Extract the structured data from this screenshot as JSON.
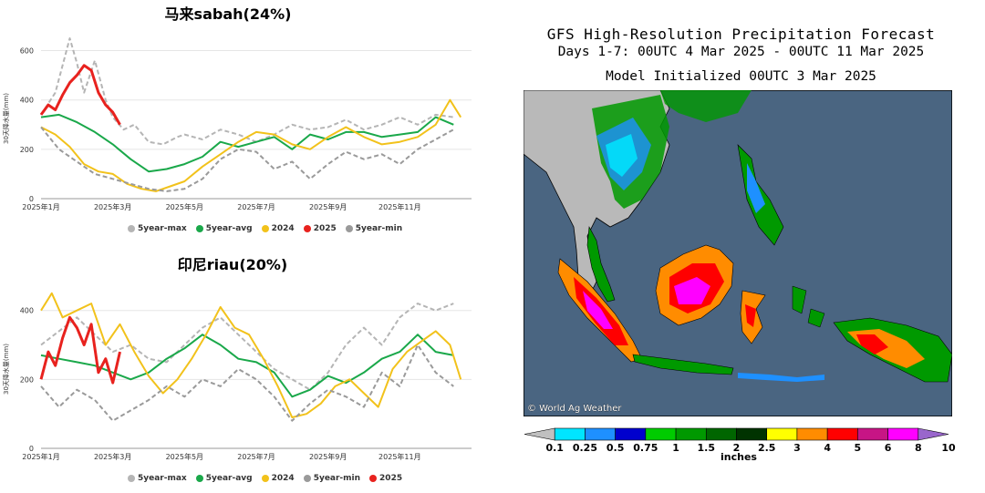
{
  "charts": [
    {
      "title": "马来sabah(24%)",
      "ylabel": "30天降水量(mm)",
      "yticks": [
        "0",
        "200",
        "400",
        "600"
      ],
      "xticks": [
        "2025年1月",
        "2025年3月",
        "2025年5月",
        "2025年7月",
        "2025年9月",
        "2025年11月"
      ],
      "legend": [
        "5year-max",
        "5year-avg",
        "2024",
        "2025",
        "5year-min"
      ]
    },
    {
      "title": "印尼riau(20%)",
      "ylabel": "30天降水量(mm)",
      "yticks": [
        "0",
        "200",
        "400"
      ],
      "xticks": [
        "2025年1月",
        "2025年3月",
        "2025年5月",
        "2025年7月",
        "2025年9月",
        "2025年11月"
      ],
      "legend": [
        "5year-max",
        "5year-avg",
        "2024",
        "5year-min",
        "2025"
      ]
    }
  ],
  "colors": {
    "max": "#b5b5b5",
    "min": "#9a9a9a",
    "avg": "#1aa84a",
    "y2024": "#f2c21b",
    "y2025": "#e8221e",
    "ocean": "#4a6581",
    "land": "#b9b9b9"
  },
  "chart_data": [
    {
      "type": "line",
      "title": "马来sabah(24%)",
      "ylabel": "30天降水量(mm)",
      "ylim": [
        0,
        650
      ],
      "x_unit": "months since 2025年1月",
      "series": [
        {
          "name": "5year-max",
          "x": [
            0,
            0.4,
            0.8,
            1.0,
            1.2,
            1.5,
            1.8,
            2.0,
            2.3,
            2.6,
            3.0,
            3.4,
            3.8,
            4.0,
            4.5,
            5.0,
            5.5,
            6.0,
            6.5,
            7.0,
            7.5,
            8.0,
            8.5,
            9.0,
            9.5,
            10.0,
            10.5,
            11.0,
            11.5
          ],
          "values": [
            340,
            430,
            650,
            550,
            430,
            560,
            400,
            330,
            280,
            300,
            230,
            220,
            250,
            260,
            240,
            280,
            260,
            230,
            260,
            300,
            280,
            290,
            320,
            280,
            300,
            330,
            300,
            340,
            330
          ]
        },
        {
          "name": "5year-avg",
          "x": [
            0,
            0.5,
            1.0,
            1.5,
            2.0,
            2.5,
            3.0,
            3.5,
            4.0,
            4.5,
            5.0,
            5.5,
            6.0,
            6.5,
            7.0,
            7.5,
            8.0,
            8.5,
            9.0,
            9.5,
            10.0,
            10.5,
            11.0,
            11.5
          ],
          "values": [
            330,
            340,
            310,
            270,
            220,
            160,
            110,
            120,
            140,
            170,
            230,
            210,
            230,
            250,
            200,
            260,
            240,
            270,
            270,
            250,
            260,
            270,
            330,
            300
          ]
        },
        {
          "name": "2024",
          "x": [
            0,
            0.4,
            0.8,
            1.2,
            1.6,
            2.0,
            2.4,
            2.8,
            3.2,
            3.6,
            4.0,
            4.5,
            5.0,
            5.5,
            6.0,
            6.5,
            7.0,
            7.5,
            8.0,
            8.5,
            9.0,
            9.5,
            10.0,
            10.5,
            11.0,
            11.4,
            11.7
          ],
          "values": [
            290,
            260,
            210,
            140,
            110,
            100,
            60,
            40,
            30,
            50,
            70,
            130,
            180,
            230,
            270,
            260,
            220,
            200,
            250,
            290,
            250,
            220,
            230,
            250,
            300,
            400,
            330
          ]
        },
        {
          "name": "2025",
          "x": [
            0,
            0.2,
            0.4,
            0.6,
            0.8,
            1.0,
            1.2,
            1.4,
            1.6,
            1.8,
            2.0,
            2.2
          ],
          "values": [
            340,
            380,
            360,
            420,
            470,
            500,
            540,
            520,
            430,
            380,
            350,
            300
          ]
        },
        {
          "name": "5year-min",
          "x": [
            0,
            0.5,
            1.0,
            1.5,
            2.0,
            2.5,
            3.0,
            3.5,
            4.0,
            4.5,
            5.0,
            5.5,
            6.0,
            6.5,
            7.0,
            7.5,
            8.0,
            8.5,
            9.0,
            9.5,
            10.0,
            10.5,
            11.0,
            11.5
          ],
          "values": [
            290,
            200,
            150,
            100,
            80,
            60,
            40,
            30,
            40,
            80,
            160,
            200,
            190,
            120,
            150,
            80,
            140,
            190,
            160,
            180,
            140,
            200,
            240,
            280
          ]
        }
      ]
    },
    {
      "type": "line",
      "title": "印尼riau(20%)",
      "ylabel": "30天降水量(mm)",
      "ylim": [
        0,
        460
      ],
      "x_unit": "months since 2025年1月",
      "series": [
        {
          "name": "5year-max",
          "x": [
            0,
            0.5,
            1.0,
            1.5,
            2.0,
            2.5,
            3.0,
            3.5,
            4.0,
            4.5,
            5.0,
            5.5,
            6.0,
            6.5,
            7.0,
            7.5,
            8.0,
            8.5,
            9.0,
            9.5,
            10.0,
            10.5,
            11.0,
            11.5
          ],
          "values": [
            300,
            340,
            380,
            330,
            280,
            300,
            260,
            250,
            300,
            350,
            380,
            330,
            280,
            230,
            200,
            170,
            220,
            300,
            350,
            300,
            380,
            420,
            400,
            420
          ]
        },
        {
          "name": "5year-avg",
          "x": [
            0,
            0.5,
            1.0,
            1.5,
            2.0,
            2.5,
            3.0,
            3.5,
            4.0,
            4.5,
            5.0,
            5.5,
            6.0,
            6.5,
            7.0,
            7.5,
            8.0,
            8.5,
            9.0,
            9.5,
            10.0,
            10.5,
            11.0,
            11.5
          ],
          "values": [
            270,
            260,
            250,
            240,
            220,
            200,
            220,
            260,
            290,
            330,
            300,
            260,
            250,
            220,
            150,
            170,
            210,
            190,
            220,
            260,
            280,
            330,
            280,
            270
          ]
        },
        {
          "name": "2024",
          "x": [
            0,
            0.3,
            0.6,
            1.0,
            1.4,
            1.8,
            2.2,
            2.6,
            3.0,
            3.4,
            3.8,
            4.2,
            4.6,
            5.0,
            5.4,
            5.8,
            6.2,
            6.6,
            7.0,
            7.4,
            7.8,
            8.2,
            8.6,
            9.0,
            9.4,
            9.8,
            10.2,
            10.6,
            11.0,
            11.4,
            11.7
          ],
          "values": [
            400,
            450,
            380,
            400,
            420,
            300,
            360,
            280,
            210,
            160,
            200,
            260,
            330,
            410,
            350,
            330,
            260,
            180,
            90,
            100,
            130,
            180,
            200,
            160,
            120,
            230,
            280,
            310,
            340,
            300,
            200
          ]
        },
        {
          "name": "5year-min",
          "x": [
            0,
            0.5,
            1.0,
            1.5,
            2.0,
            2.5,
            3.0,
            3.5,
            4.0,
            4.5,
            5.0,
            5.5,
            6.0,
            6.5,
            7.0,
            7.5,
            8.0,
            8.5,
            9.0,
            9.5,
            10.0,
            10.5,
            11.0,
            11.5
          ],
          "values": [
            180,
            120,
            170,
            140,
            80,
            110,
            140,
            180,
            150,
            200,
            180,
            230,
            200,
            150,
            80,
            130,
            170,
            150,
            120,
            220,
            180,
            300,
            220,
            180
          ]
        },
        {
          "name": "2025",
          "x": [
            0,
            0.2,
            0.4,
            0.6,
            0.8,
            1.0,
            1.2,
            1.4,
            1.6,
            1.8,
            2.0,
            2.2
          ],
          "values": [
            200,
            280,
            240,
            320,
            380,
            350,
            300,
            360,
            220,
            260,
            190,
            280
          ]
        }
      ]
    }
  ],
  "map": {
    "title_line1": "GFS High-Resolution Precipitation Forecast",
    "title_line2": "Days 1-7: 00UTC 4 Mar 2025 - 00UTC 11 Mar 2025",
    "title_line3": "Model Initialized 00UTC 3 Mar 2025",
    "credit": "© World Ag Weather",
    "colorbar_labels": [
      "0.1",
      "0.25",
      "0.5",
      "0.75",
      "1",
      "1.5",
      "2",
      "2.5",
      "3",
      "4",
      "5",
      "6",
      "8",
      "10"
    ],
    "colorbar_colors": [
      "#c0c0c0",
      "#00e5ff",
      "#1e90ff",
      "#0000cd",
      "#00cc00",
      "#009900",
      "#006600",
      "#003300",
      "#ffff00",
      "#ff8c00",
      "#ff0000",
      "#c71585",
      "#ff00ff",
      "#9966cc"
    ],
    "colorbar_unit": "inches"
  }
}
